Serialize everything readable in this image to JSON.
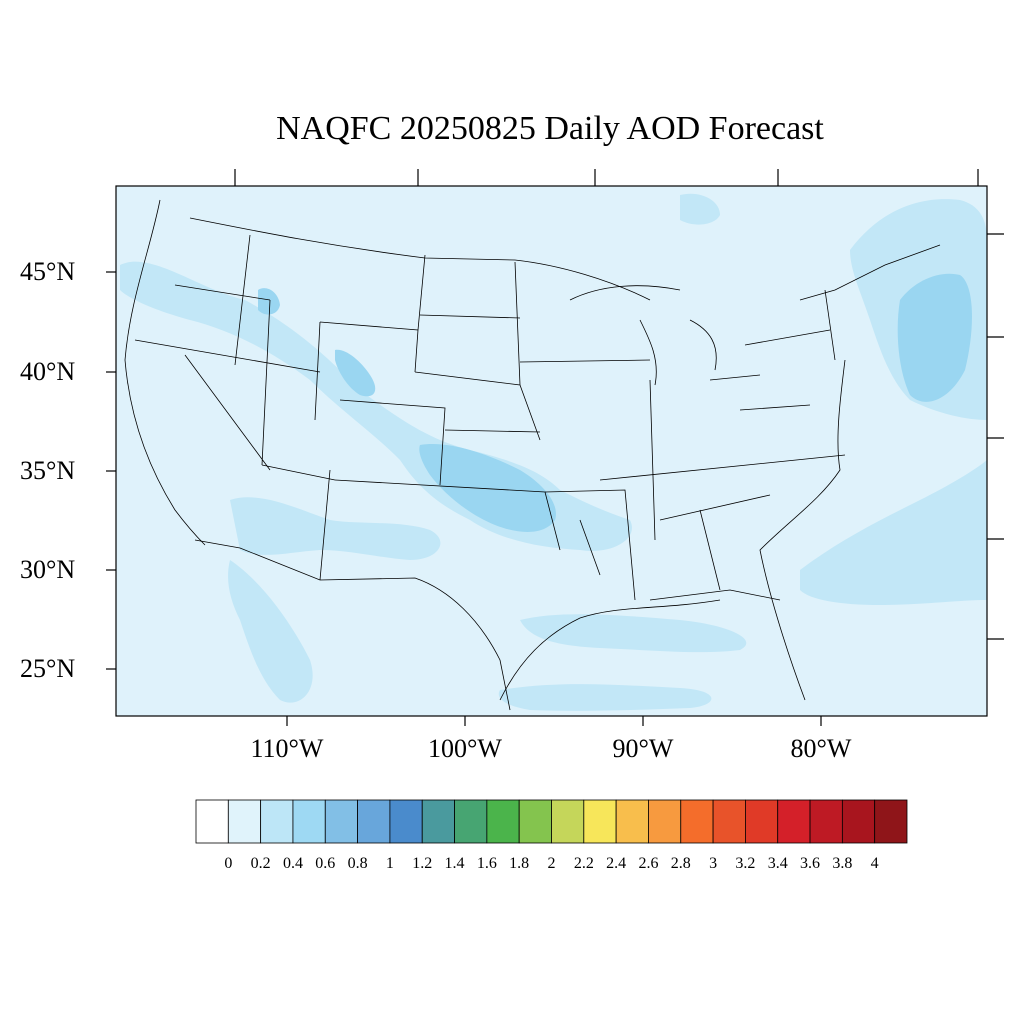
{
  "title": "NAQFC 20250825 Daily AOD Forecast",
  "map": {
    "projection": "lambert-conformal",
    "region": "CONUS",
    "lat_ticks": [
      "45°N",
      "40°N",
      "35°N",
      "30°N",
      "25°N"
    ],
    "lon_ticks": [
      "110°W",
      "100°W",
      "90°W",
      "80°W"
    ],
    "background_color": "#dff2fb",
    "feature_color": "#c2e7f7",
    "hotspot_color": "#9ad6f1",
    "boundary_color": "#000000"
  },
  "colorbar": {
    "colors": [
      "#ffffff",
      "#e0f3fb",
      "#bde6f7",
      "#9ed9f3",
      "#82bfe6",
      "#68a6db",
      "#4a8bcc",
      "#4a9a9e",
      "#47a572",
      "#4bb44b",
      "#84c44e",
      "#c5d65a",
      "#f7e65a",
      "#f8be4c",
      "#f79a3f",
      "#f46d2b",
      "#e8532a",
      "#e03a27",
      "#d42029",
      "#be1a24",
      "#a8151e",
      "#8f1519"
    ],
    "labels": [
      "0",
      "0.2",
      "0.4",
      "0.6",
      "0.8",
      "1",
      "1.2",
      "1.4",
      "1.6",
      "1.8",
      "2",
      "2.2",
      "2.4",
      "2.6",
      "2.8",
      "3",
      "3.2",
      "3.4",
      "3.6",
      "3.8",
      "4"
    ]
  }
}
